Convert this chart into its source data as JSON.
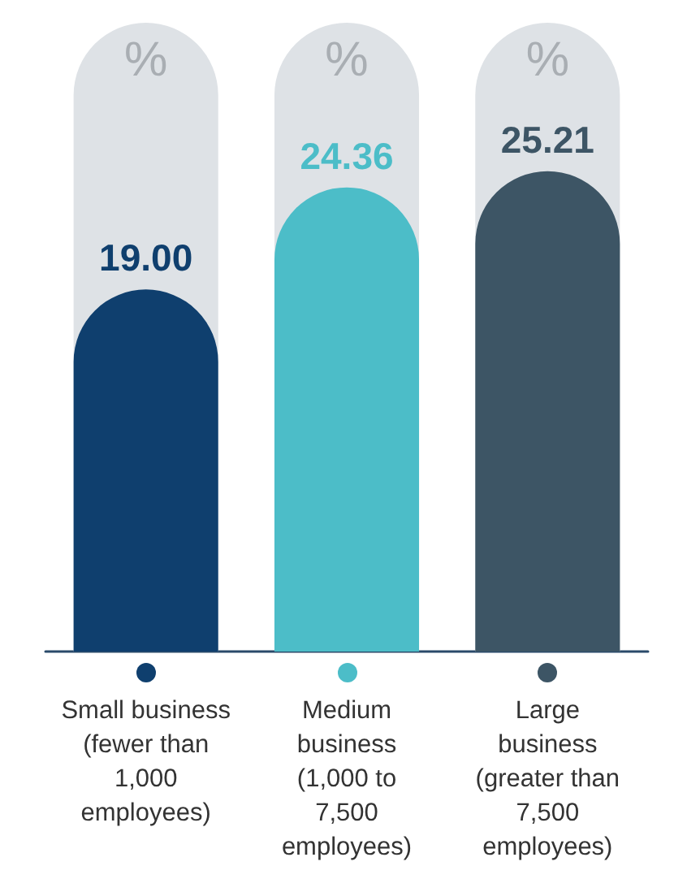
{
  "chart_data": {
    "type": "bar",
    "categories": [
      "Small business\n(fewer than\n1,000\nemployees)",
      "Medium\nbusiness\n(1,000 to\n7,500\nemployees)",
      "Large\nbusiness\n(greater than\n7,500\nemployees)"
    ],
    "values": [
      19.0,
      24.36,
      25.21
    ],
    "colors": [
      "#0f3f6e",
      "#4cbdc8",
      "#3d5565"
    ],
    "ylim": [
      0,
      33
    ],
    "value_labels": [
      "19.00",
      "24.36",
      "25.21"
    ],
    "annotations": [
      "%",
      "%",
      "%"
    ],
    "grid": false
  }
}
